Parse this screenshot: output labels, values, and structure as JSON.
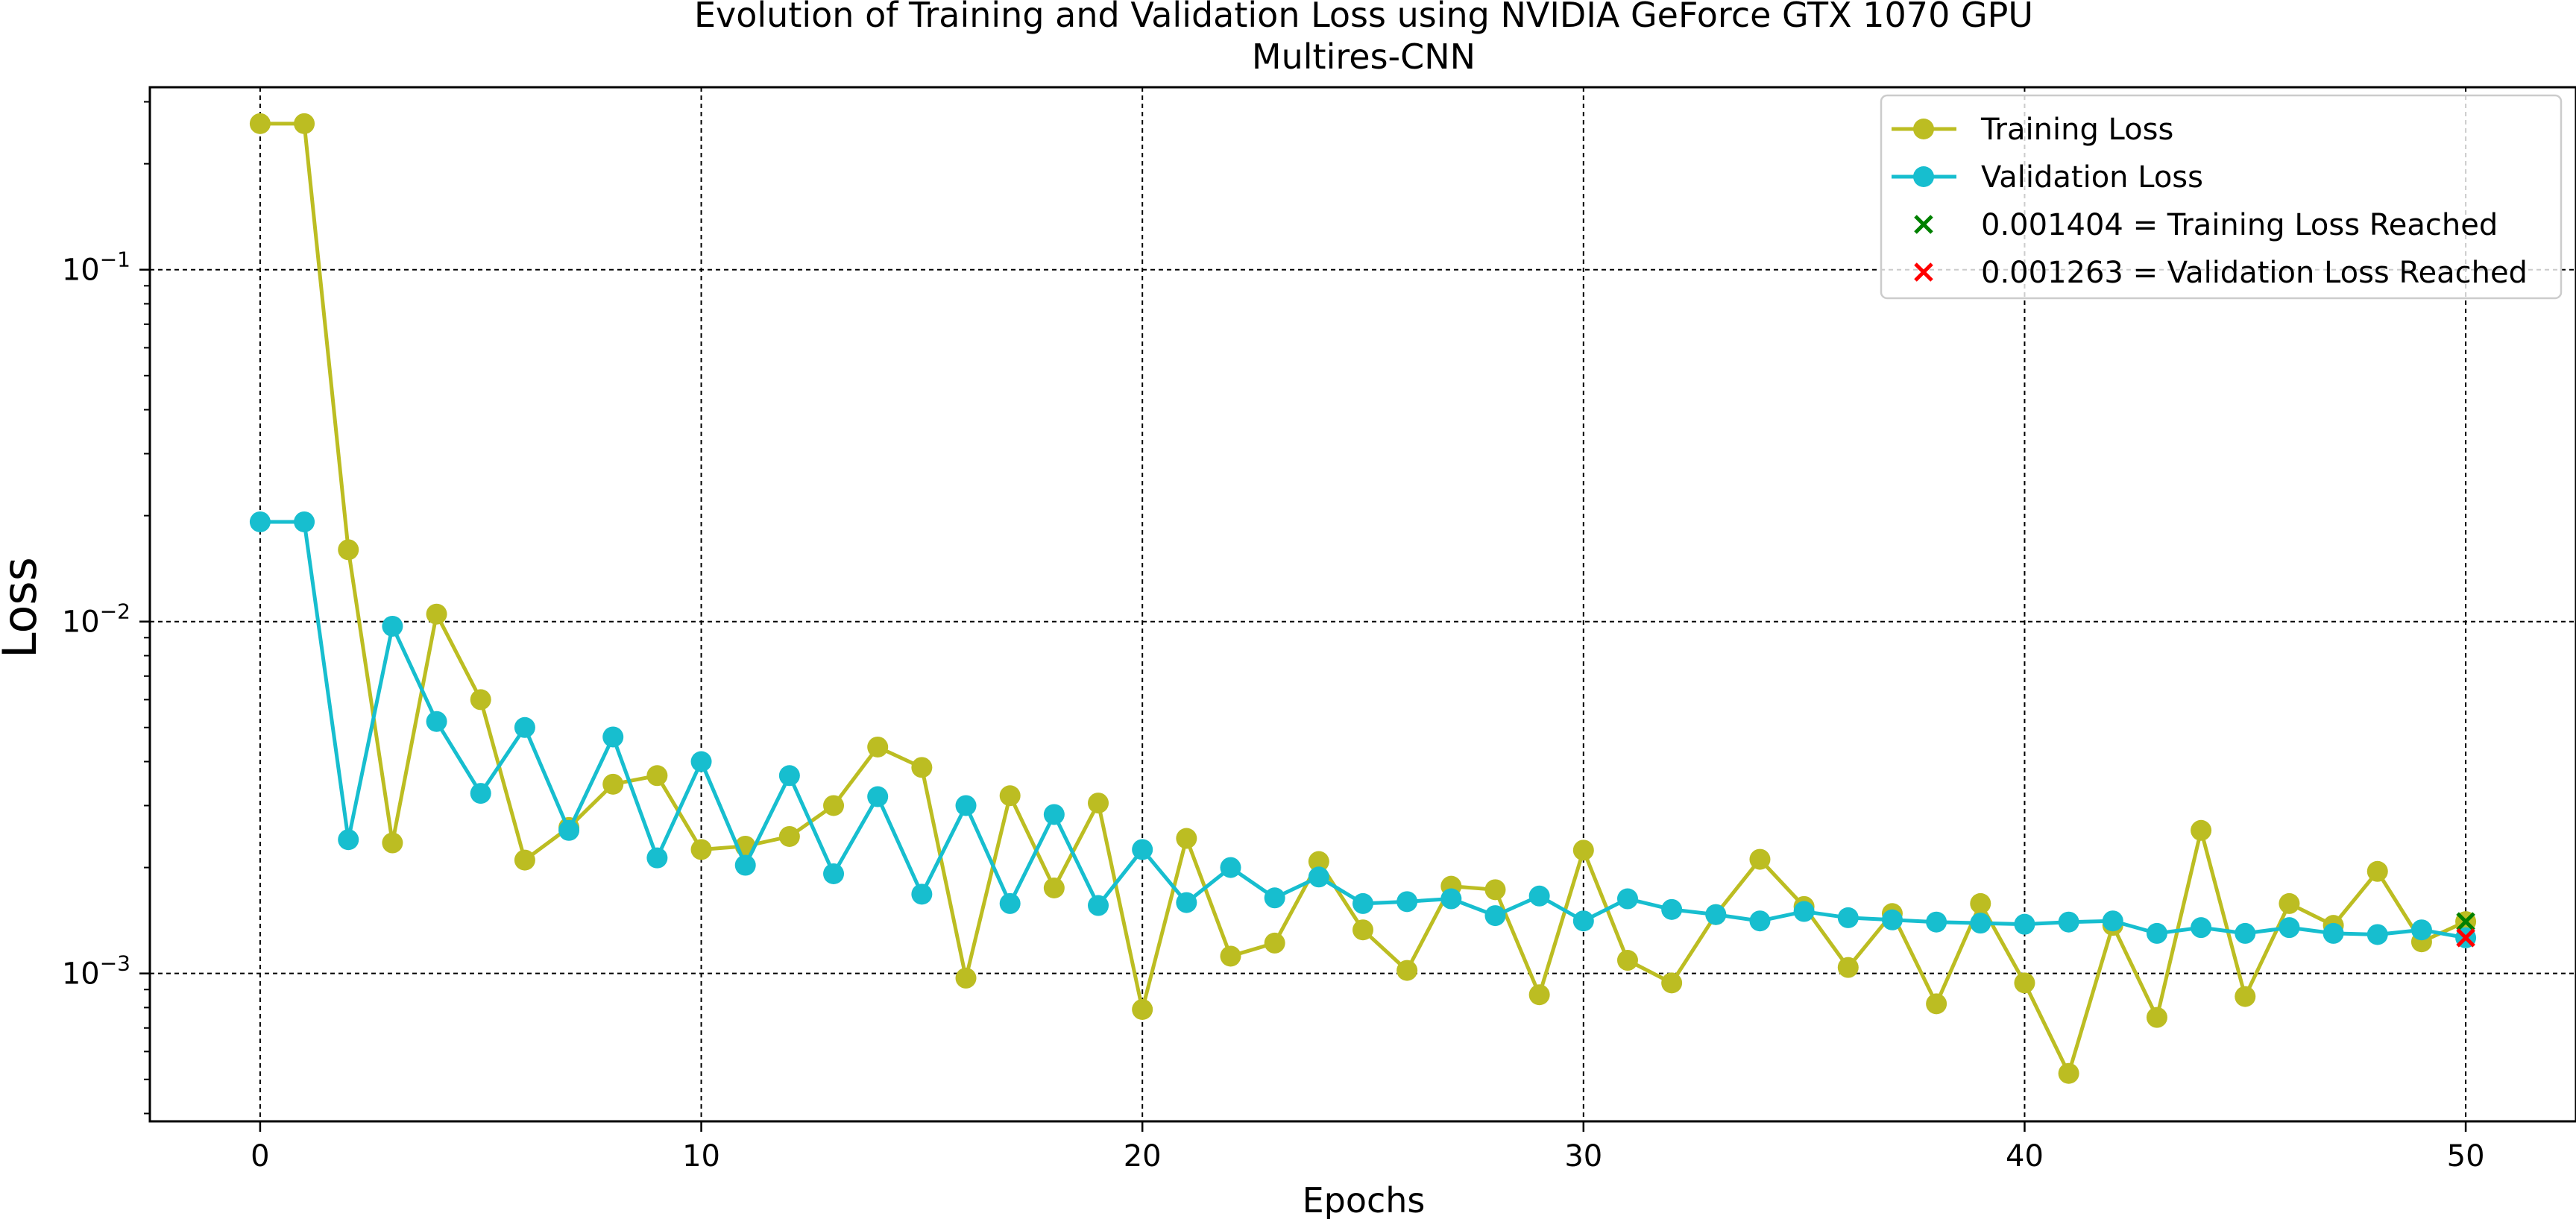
{
  "chart_data": {
    "type": "line",
    "title": "Evolution of Training and Validation Loss using NVIDIA GeForce GTX 1070 GPU",
    "subtitle": "Multires-CNN",
    "xlabel": "Epochs",
    "ylabel": "Loss",
    "yscale": "log",
    "xlim": [
      -2.5,
      52.5
    ],
    "ylim": [
      0.00038,
      0.33
    ],
    "xticks": [
      0,
      10,
      20,
      30,
      40,
      50
    ],
    "xtick_labels": [
      "0",
      "10",
      "20",
      "30",
      "40",
      "50"
    ],
    "yticks": [
      0.001,
      0.01,
      0.1
    ],
    "ytick_labels": [
      {
        "base": "10",
        "exp": "−3"
      },
      {
        "base": "10",
        "exp": "−2"
      },
      {
        "base": "10",
        "exp": "−1"
      }
    ],
    "grid": true,
    "legend_position": "top-right",
    "x": [
      0,
      1,
      2,
      3,
      4,
      5,
      6,
      7,
      8,
      9,
      10,
      11,
      12,
      13,
      14,
      15,
      16,
      17,
      18,
      19,
      20,
      21,
      22,
      23,
      24,
      25,
      26,
      27,
      28,
      29,
      30,
      31,
      32,
      33,
      34,
      35,
      36,
      37,
      38,
      39,
      40,
      41,
      42,
      43,
      44,
      45,
      46,
      47,
      48,
      49,
      50
    ],
    "series": [
      {
        "name": "Training Loss",
        "color": "#bcbd22",
        "values": [
          0.26,
          0.26,
          0.016,
          0.00235,
          0.0105,
          0.006,
          0.0021,
          0.0026,
          0.00345,
          0.00365,
          0.00225,
          0.0023,
          0.00245,
          0.003,
          0.0044,
          0.00385,
          0.00097,
          0.0032,
          0.00175,
          0.00305,
          0.00079,
          0.00242,
          0.00112,
          0.00122,
          0.00208,
          0.00133,
          0.00102,
          0.00177,
          0.00173,
          0.00087,
          0.00224,
          0.00109,
          0.00094,
          0.00147,
          0.00211,
          0.00155,
          0.00104,
          0.00148,
          0.00082,
          0.00158,
          0.00094,
          0.00052,
          0.00137,
          0.00075,
          0.00255,
          0.00086,
          0.00158,
          0.00137,
          0.00195,
          0.00123,
          0.001404
        ]
      },
      {
        "name": "Validation Loss",
        "color": "#17becf",
        "values": [
          0.0192,
          0.0192,
          0.0024,
          0.0097,
          0.0052,
          0.00325,
          0.005,
          0.00255,
          0.0047,
          0.00213,
          0.004,
          0.00203,
          0.00365,
          0.00192,
          0.00318,
          0.00168,
          0.003,
          0.00158,
          0.00283,
          0.00156,
          0.00225,
          0.00159,
          0.002,
          0.00164,
          0.00188,
          0.00158,
          0.0016,
          0.00163,
          0.00146,
          0.00166,
          0.00141,
          0.00163,
          0.00152,
          0.00147,
          0.00141,
          0.0015,
          0.00144,
          0.00142,
          0.0014,
          0.00139,
          0.00138,
          0.0014,
          0.00141,
          0.0013,
          0.00135,
          0.0013,
          0.00135,
          0.0013,
          0.00129,
          0.00133,
          0.001263
        ]
      }
    ],
    "markers": [
      {
        "name": "0.001404 = Training Loss Reached",
        "x": 50,
        "y": 0.001404,
        "color": "#008000",
        "symbol": "x"
      },
      {
        "name": "0.001263 = Validation Loss Reached",
        "x": 50,
        "y": 0.001263,
        "color": "#ff0000",
        "symbol": "x"
      }
    ]
  }
}
